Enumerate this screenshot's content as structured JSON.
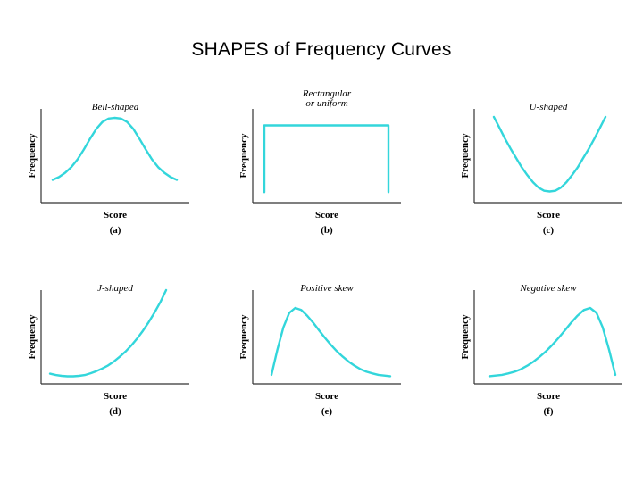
{
  "page": {
    "title": "SHAPES of Frequency Curves"
  },
  "colors": {
    "curve": "#33d6db",
    "axis": "#333333",
    "text": "#000000"
  },
  "chart_data": [
    {
      "type": "line",
      "id": "a",
      "title": "Bell-shaped",
      "title_line2": "",
      "xlabel": "Score",
      "ylabel": "Frequency",
      "caption": "(a)",
      "xlim": [
        0,
        10
      ],
      "ylim": [
        0,
        10
      ],
      "x": [
        0,
        0.5,
        1,
        1.5,
        2,
        2.5,
        3,
        3.5,
        4,
        4.5,
        5,
        5.5,
        6,
        6.5,
        7,
        7.5,
        8,
        8.5,
        9,
        9.5,
        10
      ],
      "y": [
        1.2,
        1.6,
        2.2,
        3.0,
        4.1,
        5.5,
        7.0,
        8.4,
        9.4,
        9.9,
        10,
        9.9,
        9.4,
        8.4,
        7.0,
        5.5,
        4.1,
        3.0,
        2.2,
        1.6,
        1.2
      ]
    },
    {
      "type": "line",
      "id": "b",
      "title": "Rectangular",
      "title_line2": "or uniform",
      "xlabel": "Score",
      "ylabel": "Frequency",
      "caption": "(b)",
      "xlim": [
        0,
        10
      ],
      "ylim": [
        0,
        10
      ],
      "x": [
        0,
        0,
        10,
        10
      ],
      "y": [
        0.2,
        9.0,
        9.0,
        0.2
      ]
    },
    {
      "type": "line",
      "id": "c",
      "title": "U-shaped",
      "title_line2": "",
      "xlabel": "Score",
      "ylabel": "Frequency",
      "caption": "(c)",
      "xlim": [
        0,
        10
      ],
      "ylim": [
        0,
        10
      ],
      "x": [
        0,
        0.5,
        1,
        1.5,
        2,
        2.5,
        3,
        3.5,
        4,
        4.5,
        5,
        5.5,
        6,
        6.5,
        7,
        7.5,
        8,
        8.5,
        9,
        9.5,
        10
      ],
      "y": [
        10,
        8.6,
        7.2,
        5.9,
        4.7,
        3.5,
        2.5,
        1.6,
        0.9,
        0.5,
        0.4,
        0.5,
        0.9,
        1.6,
        2.5,
        3.5,
        4.7,
        5.9,
        7.2,
        8.6,
        10
      ]
    },
    {
      "type": "line",
      "id": "d",
      "title": "J-shaped",
      "title_line2": "",
      "xlabel": "Score",
      "ylabel": "Frequency",
      "caption": "(d)",
      "xlim": [
        0,
        10
      ],
      "ylim": [
        0,
        10
      ],
      "x": [
        0,
        0.5,
        1,
        1.5,
        2,
        2.5,
        3,
        3.5,
        4,
        4.5,
        5,
        5.5,
        6,
        6.5,
        7,
        7.5,
        8,
        8.5,
        9,
        9.5,
        10
      ],
      "y": [
        0.35,
        0.2,
        0.1,
        0.05,
        0.05,
        0.1,
        0.2,
        0.4,
        0.65,
        0.95,
        1.3,
        1.75,
        2.3,
        2.9,
        3.6,
        4.4,
        5.3,
        6.3,
        7.4,
        8.6,
        10
      ]
    },
    {
      "type": "line",
      "id": "e",
      "title": "Positive skew",
      "title_line2": "",
      "xlabel": "Score",
      "ylabel": "Frequency",
      "caption": "(e)",
      "xlim": [
        0,
        10
      ],
      "ylim": [
        0,
        10
      ],
      "x": [
        0,
        0.5,
        1,
        1.5,
        2,
        2.5,
        3,
        3.5,
        4,
        4.5,
        5,
        5.5,
        6,
        6.5,
        7,
        7.5,
        8,
        8.5,
        9,
        9.5,
        10
      ],
      "y": [
        0.4,
        4.0,
        7.2,
        9.3,
        10,
        9.7,
        8.9,
        7.9,
        6.8,
        5.7,
        4.7,
        3.8,
        3.0,
        2.3,
        1.7,
        1.2,
        0.85,
        0.6,
        0.4,
        0.3,
        0.2
      ]
    },
    {
      "type": "line",
      "id": "f",
      "title": "Negative skew",
      "title_line2": "",
      "xlabel": "Score",
      "ylabel": "Frequency",
      "caption": "(f)",
      "xlim": [
        0,
        10
      ],
      "ylim": [
        0,
        10
      ],
      "x": [
        0,
        0.5,
        1,
        1.5,
        2,
        2.5,
        3,
        3.5,
        4,
        4.5,
        5,
        5.5,
        6,
        6.5,
        7,
        7.5,
        8,
        8.5,
        9,
        9.5,
        10
      ],
      "y": [
        0.2,
        0.3,
        0.4,
        0.6,
        0.85,
        1.2,
        1.7,
        2.3,
        3.0,
        3.8,
        4.7,
        5.7,
        6.8,
        7.9,
        8.9,
        9.7,
        10,
        9.3,
        7.2,
        4.0,
        0.4
      ]
    }
  ]
}
